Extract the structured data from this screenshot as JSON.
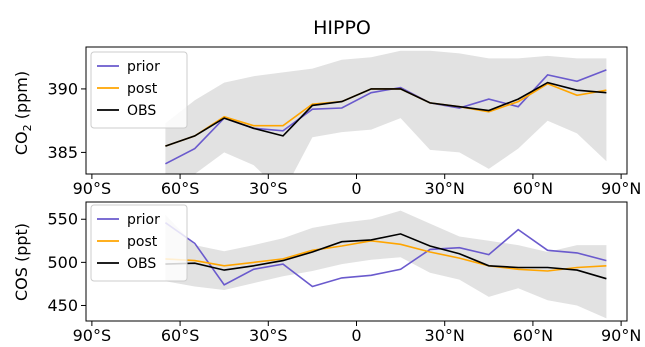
{
  "chart_data": {
    "title": "HIPPO",
    "x_tick_labels": [
      "90°S",
      "60°S",
      "30°S",
      "0",
      "30°N",
      "60°N",
      "90°N"
    ],
    "x_ticks": [
      -90,
      -60,
      -30,
      0,
      30,
      60,
      90
    ],
    "panels": [
      {
        "type": "line",
        "ylabel_main": "CO",
        "ylabel_sub": "2",
        "ylabel_rest": " (ppm)",
        "xlim": [
          -92,
          92
        ],
        "ylim": [
          383.3,
          393.3
        ],
        "y_ticks": [
          385,
          390
        ],
        "y_tick_labels": [
          "385",
          "390"
        ],
        "x": [
          -65,
          -55,
          -45,
          -35,
          -25,
          -15,
          -5,
          5,
          15,
          25,
          35,
          45,
          55,
          65,
          75,
          85
        ],
        "band_upper": [
          387.3,
          389.1,
          390.5,
          391.0,
          391.3,
          391.6,
          392.3,
          392.5,
          393.0,
          393.0,
          392.8,
          392.4,
          392.4,
          392.6,
          392.4,
          392.4
        ],
        "band_lower": [
          383.3,
          383.3,
          385.0,
          384.0,
          381.8,
          386.2,
          386.6,
          386.8,
          387.7,
          385.2,
          385.0,
          383.7,
          385.3,
          387.5,
          386.5,
          384.3
        ],
        "series": [
          {
            "name": "prior",
            "color": "#6a5acd",
            "values": [
              384.1,
              385.3,
              387.7,
              386.9,
              386.7,
              388.4,
              388.5,
              389.7,
              390.1,
              388.9,
              388.5,
              389.2,
              388.6,
              391.1,
              390.6,
              391.5
            ]
          },
          {
            "name": "post",
            "color": "#ffa500",
            "values": [
              385.5,
              386.3,
              387.8,
              387.1,
              387.1,
              388.8,
              389.0,
              390.0,
              390.0,
              388.9,
              388.6,
              388.2,
              389.0,
              390.4,
              389.5,
              389.9
            ]
          },
          {
            "name": "OBS",
            "color": "#000000",
            "values": [
              385.5,
              386.3,
              387.7,
              386.9,
              386.3,
              388.7,
              389.0,
              390.0,
              390.0,
              388.9,
              388.6,
              388.3,
              389.2,
              390.5,
              389.9,
              389.7
            ]
          }
        ]
      },
      {
        "type": "line",
        "ylabel_main": "COS (ppt)",
        "ylabel_sub": "",
        "ylabel_rest": "",
        "xlim": [
          -92,
          92
        ],
        "ylim": [
          432,
          570
        ],
        "y_ticks": [
          450,
          500,
          550
        ],
        "y_tick_labels": [
          "450",
          "500",
          "550"
        ],
        "x": [
          -65,
          -55,
          -45,
          -35,
          -25,
          -15,
          -5,
          5,
          15,
          25,
          35,
          45,
          55,
          65,
          75,
          85
        ],
        "band_upper": [
          555,
          520,
          513,
          520,
          528,
          540,
          546,
          550,
          560,
          545,
          530,
          525,
          520,
          512,
          520,
          520
        ],
        "band_lower": [
          478,
          472,
          468,
          476,
          484,
          490,
          498,
          503,
          506,
          488,
          480,
          460,
          470,
          456,
          450,
          435
        ],
        "series": [
          {
            "name": "prior",
            "color": "#6a5acd",
            "values": [
              546,
              522,
              474,
              492,
              498,
              472,
              482,
              485,
              492,
              515,
              517,
              509,
              538,
              514,
              511,
              502
            ]
          },
          {
            "name": "post",
            "color": "#ffa500",
            "values": [
              504,
              502,
              496,
              500,
              504,
              514,
              519,
              525,
              521,
              512,
              505,
              496,
              492,
              490,
              494,
              496
            ]
          },
          {
            "name": "OBS",
            "color": "#000000",
            "values": [
              498,
              499,
              491,
              496,
              502,
              512,
              524,
              526,
              533,
              519,
              510,
              496,
              494,
              494,
              491,
              481
            ]
          }
        ]
      }
    ]
  }
}
